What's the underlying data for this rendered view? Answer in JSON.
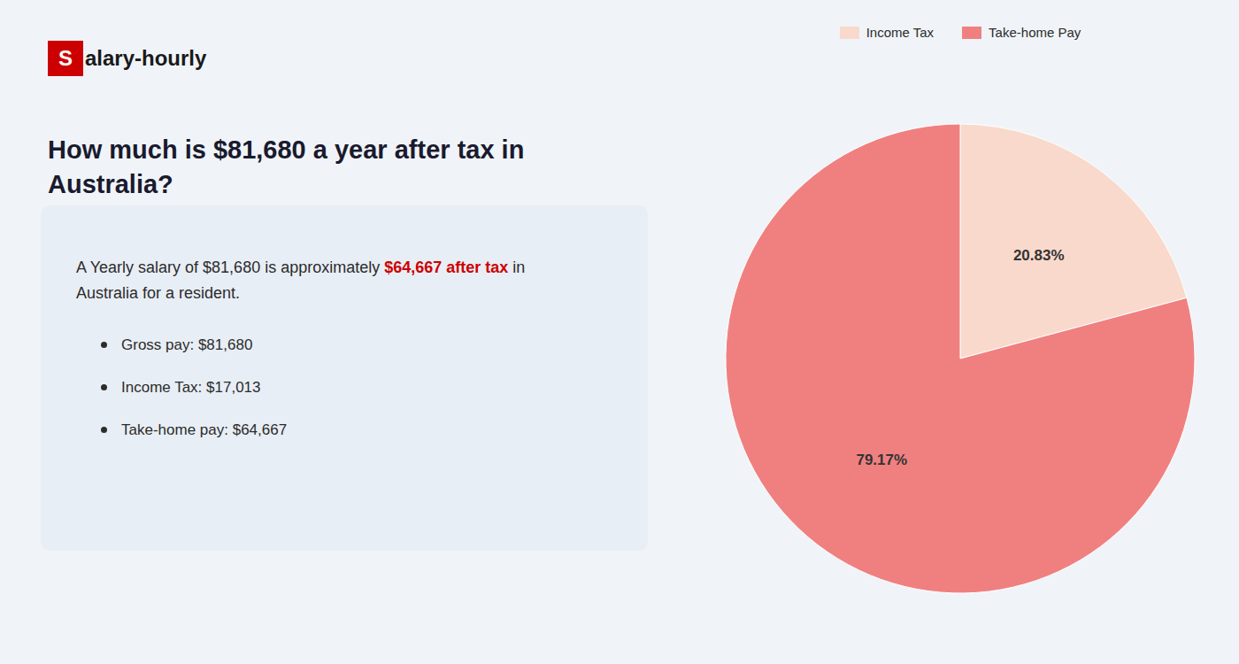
{
  "chart_data": {
    "type": "pie",
    "title": "How much is $81,680 a year after tax in\nAustralia?",
    "categories": [
      "Income Tax",
      "Take-home Pay"
    ],
    "values": [
      20.83,
      79.17
    ],
    "value_labels": [
      "20.83%",
      "79.17%"
    ],
    "colors": [
      "#f9d9cc",
      "#f08080"
    ],
    "legend": "top",
    "annotations": [
      "S",
      "alary-hourly",
      "A Yearly salary of $81,680 is approximately ",
      "$64,667 after tax",
      " in",
      "Australia for a resident.",
      "Gross pay: $81,680",
      "Income Tax: $17,013",
      "Take-home pay: $64,667"
    ]
  }
}
